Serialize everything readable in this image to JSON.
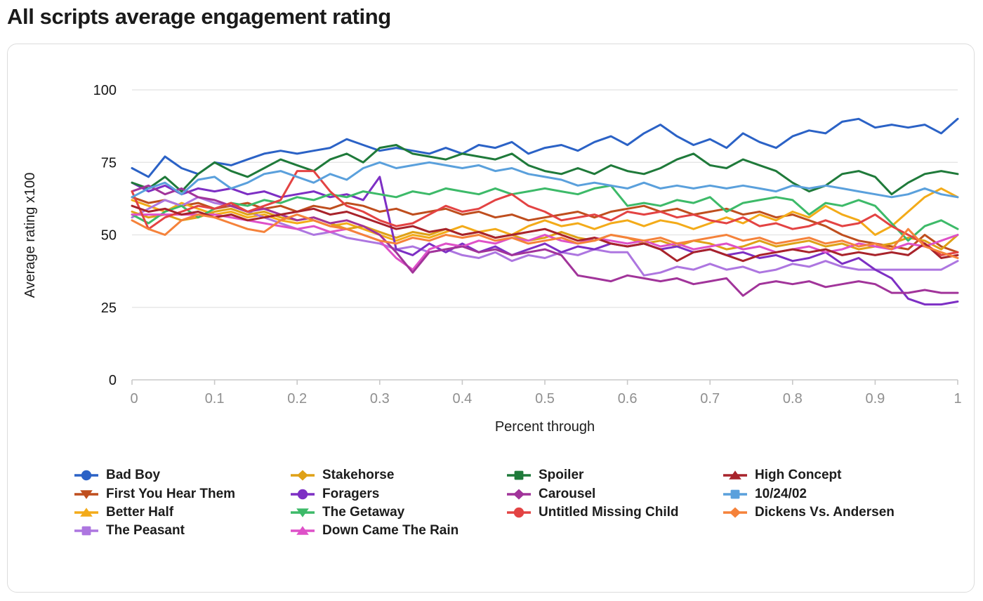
{
  "page": {
    "title": "All scripts average engagement rating"
  },
  "styles": {
    "grid_color": "#e7e7e7",
    "axis_color": "#c8c8c8",
    "x_tick_label_color": "#8f8f8f",
    "y_tick_label_color": "#161616",
    "card_border": "#dcdcdc",
    "background": "#ffffff"
  },
  "chart_data": {
    "type": "line",
    "title": "All scripts average engagement rating",
    "xlabel": "Percent through",
    "ylabel": "Average rating x100",
    "xlim": [
      0,
      1
    ],
    "ylim": [
      0,
      100
    ],
    "x_tick_values": [
      0,
      0.1,
      0.2,
      0.3,
      0.4,
      0.5,
      0.6,
      0.7,
      0.8,
      0.9,
      1
    ],
    "x_ticks": [
      "0",
      "0.1",
      "0.2",
      "0.3",
      "0.4",
      "0.5",
      "0.6",
      "0.7",
      "0.8",
      "0.9",
      "1"
    ],
    "y_ticks": [
      0,
      25,
      50,
      75,
      100
    ],
    "grid": "horizontal",
    "legend_position": "bottom",
    "legend_column_sizes": [
      4,
      4,
      3,
      3
    ],
    "x_step": 0.02,
    "series": [
      {
        "name": "Bad Boy",
        "color": "#2b62c6",
        "marker": "circle",
        "values": [
          73,
          70,
          77,
          73,
          71,
          75,
          74,
          76,
          78,
          79,
          78,
          79,
          80,
          83,
          81,
          79,
          80,
          79,
          78,
          80,
          78,
          81,
          80,
          82,
          78,
          80,
          81,
          79,
          82,
          84,
          81,
          85,
          88,
          84,
          81,
          83,
          80,
          85,
          82,
          80,
          84,
          86,
          85,
          89,
          90,
          87,
          88,
          87,
          88,
          85,
          90
        ]
      },
      {
        "name": "First You Hear Them",
        "color": "#bf4e1e",
        "marker": "triangle-down",
        "values": [
          63,
          61,
          62,
          60,
          61,
          59,
          60,
          61,
          59,
          60,
          58,
          60,
          59,
          61,
          60,
          58,
          59,
          57,
          58,
          59,
          57,
          58,
          56,
          57,
          55,
          56,
          57,
          58,
          56,
          58,
          59,
          60,
          58,
          59,
          57,
          58,
          59,
          57,
          58,
          56,
          57,
          55,
          53,
          50,
          48,
          47,
          46,
          45,
          50,
          46,
          44
        ]
      },
      {
        "name": "Better Half",
        "color": "#f3ab19",
        "marker": "triangle-up",
        "values": [
          62,
          60,
          58,
          61,
          59,
          57,
          58,
          56,
          57,
          55,
          54,
          55,
          53,
          54,
          52,
          50,
          48,
          50,
          49,
          51,
          53,
          51,
          52,
          50,
          53,
          55,
          53,
          54,
          52,
          54,
          55,
          53,
          55,
          54,
          52,
          54,
          56,
          54,
          57,
          55,
          58,
          56,
          60,
          57,
          55,
          50,
          53,
          58,
          63,
          66,
          63
        ]
      },
      {
        "name": "The Peasant",
        "color": "#ad76e0",
        "marker": "square",
        "values": [
          56,
          59,
          62,
          60,
          63,
          61,
          60,
          58,
          56,
          54,
          52,
          50,
          51,
          49,
          48,
          47,
          45,
          46,
          44,
          45,
          43,
          42,
          44,
          41,
          43,
          42,
          44,
          43,
          45,
          44,
          44,
          36,
          37,
          39,
          38,
          40,
          38,
          39,
          37,
          38,
          40,
          39,
          41,
          39,
          38,
          38,
          38,
          38,
          38,
          38,
          41
        ]
      },
      {
        "name": "Stakehorse",
        "color": "#dfa117",
        "marker": "diamond",
        "values": [
          58,
          56,
          57,
          55,
          56,
          58,
          59,
          57,
          58,
          56,
          55,
          56,
          54,
          52,
          53,
          51,
          49,
          51,
          50,
          52,
          50,
          51,
          49,
          50,
          48,
          49,
          51,
          49,
          48,
          50,
          49,
          47,
          48,
          46,
          48,
          47,
          45,
          46,
          48,
          46,
          47,
          48,
          46,
          47,
          45,
          46,
          47,
          49,
          48,
          45,
          50
        ]
      },
      {
        "name": "Foragers",
        "color": "#7d2fc4",
        "marker": "circle",
        "values": [
          68,
          65,
          67,
          64,
          66,
          65,
          66,
          64,
          65,
          63,
          64,
          65,
          63,
          64,
          62,
          70,
          45,
          43,
          47,
          44,
          47,
          44,
          46,
          43,
          45,
          47,
          44,
          46,
          45,
          47,
          46,
          47,
          45,
          46,
          44,
          45,
          43,
          44,
          42,
          43,
          41,
          42,
          44,
          40,
          42,
          38,
          35,
          28,
          26,
          26,
          27
        ]
      },
      {
        "name": "The Getaway",
        "color": "#3dba69",
        "marker": "triangle-down",
        "values": [
          57,
          54,
          58,
          60,
          56,
          59,
          61,
          60,
          62,
          61,
          63,
          62,
          64,
          63,
          65,
          64,
          63,
          65,
          64,
          66,
          65,
          64,
          66,
          64,
          65,
          66,
          65,
          64,
          66,
          67,
          60,
          61,
          60,
          62,
          61,
          63,
          58,
          61,
          62,
          63,
          62,
          57,
          61,
          60,
          62,
          60,
          54,
          48,
          53,
          55,
          52
        ]
      },
      {
        "name": "Down Came The Rain",
        "color": "#de51c8",
        "marker": "triangle-up",
        "values": [
          57,
          57,
          57,
          57,
          57,
          57,
          56,
          55,
          54,
          53,
          52,
          53,
          51,
          52,
          50,
          48,
          42,
          38,
          45,
          47,
          46,
          48,
          47,
          49,
          48,
          50,
          48,
          47,
          49,
          48,
          47,
          48,
          46,
          47,
          45,
          46,
          47,
          45,
          46,
          44,
          45,
          46,
          44,
          45,
          47,
          46,
          45,
          47,
          46,
          48,
          50
        ]
      },
      {
        "name": "Spoiler",
        "color": "#1f7a3a",
        "marker": "square",
        "values": [
          68,
          66,
          70,
          65,
          71,
          75,
          72,
          70,
          73,
          76,
          74,
          72,
          76,
          78,
          75,
          80,
          81,
          78,
          77,
          76,
          78,
          77,
          76,
          78,
          74,
          72,
          71,
          73,
          71,
          74,
          72,
          71,
          73,
          76,
          78,
          74,
          73,
          76,
          74,
          72,
          68,
          65,
          67,
          71,
          72,
          70,
          64,
          68,
          71,
          72,
          71
        ]
      },
      {
        "name": "Carousel",
        "color": "#a1349a",
        "marker": "diamond",
        "values": [
          65,
          67,
          64,
          66,
          63,
          62,
          60,
          58,
          59,
          57,
          55,
          56,
          54,
          55,
          53,
          50,
          44,
          37,
          44,
          45,
          46,
          44,
          45,
          43,
          44,
          45,
          43,
          36,
          35,
          34,
          36,
          35,
          34,
          35,
          33,
          34,
          35,
          29,
          33,
          34,
          33,
          34,
          32,
          33,
          34,
          33,
          30,
          30,
          31,
          30,
          30
        ]
      },
      {
        "name": "Untitled Missing Child",
        "color": "#e34343",
        "marker": "circle",
        "values": [
          65,
          52,
          56,
          58,
          60,
          59,
          61,
          58,
          60,
          62,
          72,
          72,
          65,
          60,
          58,
          55,
          53,
          54,
          57,
          60,
          58,
          59,
          62,
          64,
          60,
          58,
          55,
          56,
          57,
          55,
          58,
          57,
          58,
          56,
          57,
          55,
          54,
          56,
          53,
          54,
          52,
          53,
          55,
          53,
          54,
          57,
          53,
          50,
          47,
          43,
          44
        ]
      },
      {
        "name": "High Concept",
        "color": "#a8232b",
        "marker": "triangle-up",
        "values": [
          60,
          58,
          59,
          57,
          58,
          56,
          57,
          55,
          56,
          57,
          58,
          59,
          57,
          58,
          56,
          54,
          52,
          53,
          51,
          52,
          50,
          51,
          49,
          50,
          51,
          52,
          50,
          48,
          49,
          47,
          46,
          47,
          45,
          41,
          44,
          45,
          43,
          41,
          43,
          44,
          45,
          44,
          45,
          43,
          44,
          43,
          44,
          43,
          47,
          42,
          43
        ]
      },
      {
        "name": "10/24/02",
        "color": "#5aa0dc",
        "marker": "square",
        "values": [
          63,
          66,
          68,
          64,
          69,
          70,
          66,
          68,
          71,
          72,
          70,
          68,
          71,
          69,
          73,
          75,
          73,
          74,
          75,
          74,
          73,
          74,
          72,
          73,
          71,
          70,
          69,
          67,
          68,
          67,
          66,
          68,
          66,
          67,
          66,
          67,
          66,
          67,
          66,
          65,
          67,
          66,
          67,
          66,
          65,
          64,
          63,
          64,
          66,
          64,
          63
        ]
      },
      {
        "name": "Dickens Vs. Andersen",
        "color": "#f5823a",
        "marker": "diamond",
        "values": [
          55,
          52,
          50,
          55,
          57,
          56,
          54,
          52,
          51,
          55,
          57,
          55,
          53,
          52,
          50,
          48,
          47,
          49,
          48,
          50,
          49,
          50,
          48,
          49,
          47,
          48,
          49,
          47,
          48,
          50,
          49,
          48,
          49,
          47,
          48,
          49,
          50,
          48,
          49,
          47,
          48,
          49,
          47,
          48,
          46,
          47,
          45,
          52,
          46,
          44,
          42
        ]
      }
    ]
  }
}
